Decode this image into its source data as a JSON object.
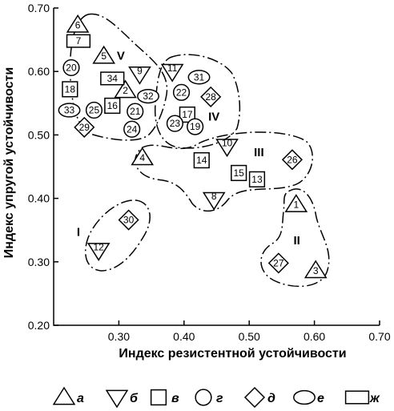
{
  "chart_data": {
    "type": "scatter",
    "xlabel": "Индекс резистентной устойчивости",
    "ylabel": "Индекс упругой устойчивости",
    "xlim": [
      0.2,
      0.7
    ],
    "ylim": [
      0.2,
      0.7
    ],
    "x_ticks": [
      "0.30",
      "0.40",
      "0.50",
      "0.60",
      "0.70"
    ],
    "y_ticks": [
      "0.20",
      "0.30",
      "0.40",
      "0.50",
      "0.60",
      "0.70"
    ],
    "legend": [
      {
        "shape": "triangle-up",
        "label": "а"
      },
      {
        "shape": "triangle-down",
        "label": "б"
      },
      {
        "shape": "square",
        "label": "в"
      },
      {
        "shape": "circle",
        "label": "г"
      },
      {
        "shape": "diamond",
        "label": "д"
      },
      {
        "shape": "ellipse",
        "label": "е"
      },
      {
        "shape": "rectangle",
        "label": "ж"
      }
    ],
    "points": [
      {
        "id": "1",
        "x": 0.572,
        "y": 0.39,
        "shape": "triangle-up"
      },
      {
        "id": "2",
        "x": 0.31,
        "y": 0.57,
        "shape": "triangle-up"
      },
      {
        "id": "3",
        "x": 0.602,
        "y": 0.286,
        "shape": "triangle-up"
      },
      {
        "id": "4",
        "x": 0.336,
        "y": 0.464,
        "shape": "triangle-up"
      },
      {
        "id": "5",
        "x": 0.277,
        "y": 0.624,
        "shape": "triangle-up"
      },
      {
        "id": "6",
        "x": 0.237,
        "y": 0.673,
        "shape": "triangle-up"
      },
      {
        "id": "7",
        "x": 0.238,
        "y": 0.648,
        "shape": "rectangle"
      },
      {
        "id": "8",
        "x": 0.446,
        "y": 0.398,
        "shape": "triangle-down"
      },
      {
        "id": "9",
        "x": 0.332,
        "y": 0.596,
        "shape": "triangle-down"
      },
      {
        "id": "10",
        "x": 0.466,
        "y": 0.482,
        "shape": "triangle-down"
      },
      {
        "id": "11",
        "x": 0.382,
        "y": 0.6,
        "shape": "triangle-down"
      },
      {
        "id": "12",
        "x": 0.269,
        "y": 0.318,
        "shape": "triangle-down"
      },
      {
        "id": "13",
        "x": 0.512,
        "y": 0.43,
        "shape": "square"
      },
      {
        "id": "14",
        "x": 0.427,
        "y": 0.46,
        "shape": "square"
      },
      {
        "id": "15",
        "x": 0.484,
        "y": 0.44,
        "shape": "square"
      },
      {
        "id": "16",
        "x": 0.29,
        "y": 0.546,
        "shape": "square"
      },
      {
        "id": "17",
        "x": 0.405,
        "y": 0.532,
        "shape": "square"
      },
      {
        "id": "18",
        "x": 0.225,
        "y": 0.572,
        "shape": "square"
      },
      {
        "id": "19",
        "x": 0.417,
        "y": 0.513,
        "shape": "circle"
      },
      {
        "id": "20",
        "x": 0.227,
        "y": 0.606,
        "shape": "circle"
      },
      {
        "id": "21",
        "x": 0.325,
        "y": 0.537,
        "shape": "circle"
      },
      {
        "id": "22",
        "x": 0.396,
        "y": 0.567,
        "shape": "circle"
      },
      {
        "id": "23",
        "x": 0.386,
        "y": 0.518,
        "shape": "circle"
      },
      {
        "id": "24",
        "x": 0.32,
        "y": 0.509,
        "shape": "circle"
      },
      {
        "id": "25",
        "x": 0.262,
        "y": 0.539,
        "shape": "circle"
      },
      {
        "id": "26",
        "x": 0.566,
        "y": 0.461,
        "shape": "diamond"
      },
      {
        "id": "27",
        "x": 0.545,
        "y": 0.298,
        "shape": "diamond"
      },
      {
        "id": "28",
        "x": 0.441,
        "y": 0.56,
        "shape": "diamond"
      },
      {
        "id": "29",
        "x": 0.247,
        "y": 0.512,
        "shape": "diamond"
      },
      {
        "id": "30",
        "x": 0.315,
        "y": 0.366,
        "shape": "diamond"
      },
      {
        "id": "31",
        "x": 0.423,
        "y": 0.591,
        "shape": "ellipse"
      },
      {
        "id": "32",
        "x": 0.345,
        "y": 0.561,
        "shape": "ellipse"
      },
      {
        "id": "33",
        "x": 0.224,
        "y": 0.539,
        "shape": "ellipse"
      },
      {
        "id": "34",
        "x": 0.29,
        "y": 0.589,
        "shape": "rectangle"
      }
    ],
    "groups": [
      {
        "label": "V",
        "label_x": 0.303,
        "label_y": 0.625
      },
      {
        "label": "IV",
        "label_x": 0.446,
        "label_y": 0.529
      },
      {
        "label": "III",
        "label_x": 0.515,
        "label_y": 0.473
      },
      {
        "label": "II",
        "label_x": 0.573,
        "label_y": 0.334
      },
      {
        "label": "I",
        "label_x": 0.238,
        "label_y": 0.347
      }
    ]
  }
}
